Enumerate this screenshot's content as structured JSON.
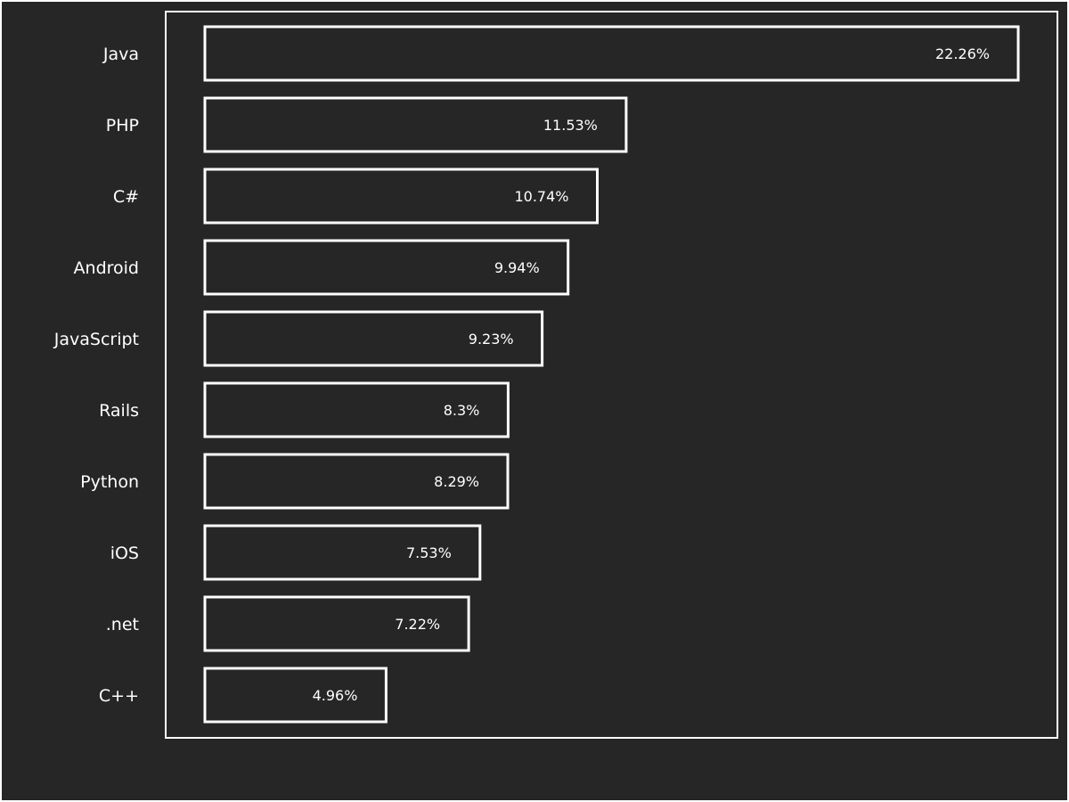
{
  "chart_data": {
    "type": "bar",
    "orientation": "horizontal",
    "categories": [
      "Java",
      "PHP",
      "C#",
      "Android",
      "JavaScript",
      "Rails",
      "Python",
      "iOS",
      ".net",
      "C++"
    ],
    "values": [
      22.26,
      11.53,
      10.74,
      9.94,
      9.23,
      8.3,
      8.29,
      7.53,
      7.22,
      4.96
    ],
    "value_labels": [
      "22.26%",
      "11.53%",
      "10.74%",
      "9.94%",
      "9.23%",
      "8.3%",
      "8.29%",
      "7.53%",
      "7.22%",
      "4.96%"
    ],
    "xlim": [
      0,
      22.26
    ],
    "grid": false,
    "title": "",
    "xlabel": "",
    "ylabel": "",
    "colors": {
      "background": "#262626",
      "bar_outline": "#ffffff",
      "text": "#ffffff",
      "frame": "#ffffff"
    }
  }
}
